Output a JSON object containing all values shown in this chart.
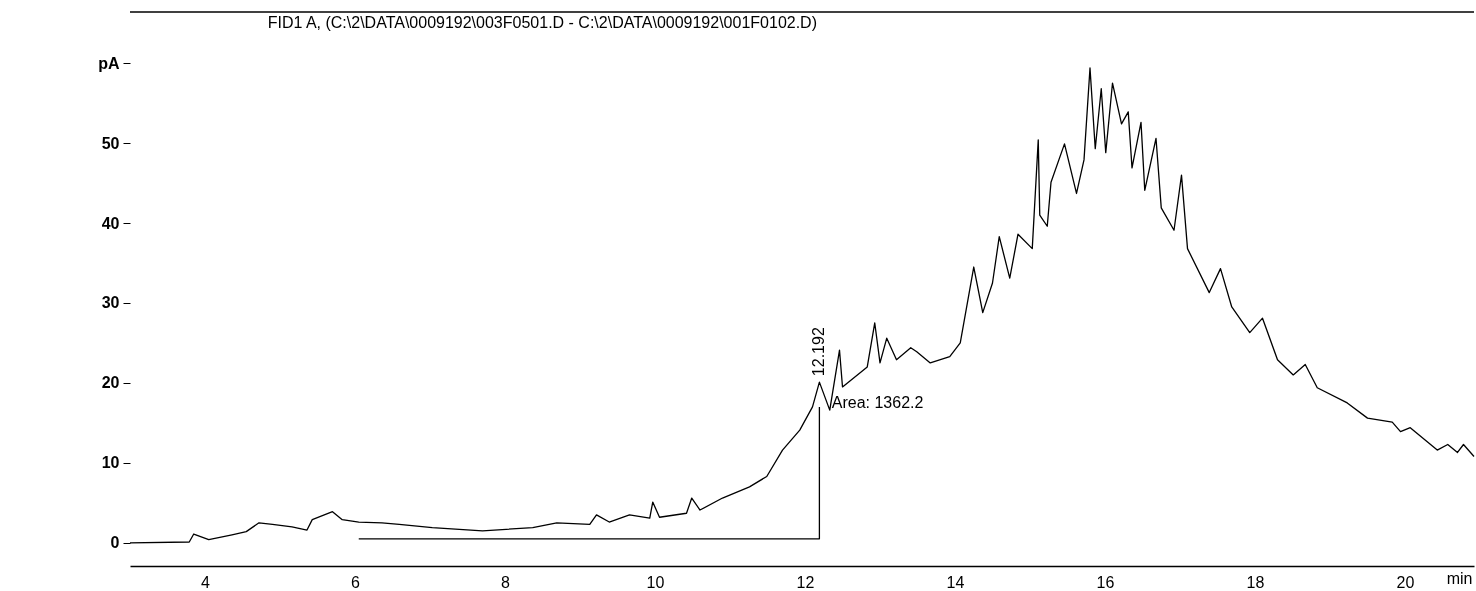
{
  "chart_data": {
    "type": "line",
    "title": "FID1 A, (C:\\2\\DATA\\0009192\\003F0501.D - C:\\2\\DATA\\0009192\\001F0102.D)",
    "xlabel": "min",
    "xlim": [
      3,
      20.92
    ],
    "ylim": [
      -2.9,
      66.4
    ],
    "xticks": [
      4,
      6,
      8,
      10,
      12,
      14,
      16,
      18,
      20
    ],
    "yticks": [
      0,
      10,
      20,
      30,
      40,
      50,
      {
        "value": 60,
        "label": "pA"
      }
    ],
    "marker": "none",
    "line_style": "solid",
    "series": [
      {
        "color": "#000000",
        "x": [
          3.0,
          3.79,
          3.85,
          4.05,
          4.36,
          4.55,
          4.72,
          4.9,
          5.16,
          5.36,
          5.43,
          5.7,
          5.83,
          6.05,
          6.36,
          6.59,
          7.03,
          7.7,
          8.37,
          8.69,
          9.13,
          9.22,
          9.39,
          9.66,
          9.93,
          9.97,
          10.06,
          10.42,
          10.49,
          10.6,
          10.9,
          11.26,
          11.49,
          11.7,
          11.93,
          12.1,
          12.192,
          12.33,
          12.46,
          12.5,
          12.83,
          12.93,
          13.0,
          13.09,
          13.22,
          13.41,
          13.49,
          13.67,
          13.93,
          14.07,
          14.25,
          14.37,
          14.5,
          14.59,
          14.73,
          14.84,
          15.03,
          15.11,
          15.13,
          15.23,
          15.28,
          15.46,
          15.62,
          15.72,
          15.8,
          15.87,
          15.95,
          16.01,
          16.1,
          16.22,
          16.31,
          16.36,
          16.48,
          16.53,
          16.68,
          16.75,
          16.92,
          17.02,
          17.1,
          17.39,
          17.54,
          17.69,
          17.93,
          18.1,
          18.3,
          18.51,
          18.67,
          18.83,
          19.23,
          19.5,
          19.83,
          19.94,
          20.07,
          20.43,
          20.57,
          20.7,
          20.78,
          20.92
        ],
        "values": [
          0,
          0.1,
          1.1,
          0.4,
          1.0,
          1.4,
          2.5,
          2.3,
          2.0,
          1.6,
          2.9,
          3.9,
          2.9,
          2.6,
          2.5,
          2.3,
          1.9,
          1.5,
          1.9,
          2.5,
          2.3,
          3.5,
          2.6,
          3.5,
          3.1,
          5.1,
          3.2,
          3.7,
          5.6,
          4.1,
          5.6,
          7.0,
          8.3,
          11.6,
          14.1,
          17.0,
          20.1,
          16.6,
          24.1,
          19.5,
          22.0,
          27.5,
          22.5,
          25.6,
          22.9,
          24.4,
          23.9,
          22.5,
          23.3,
          25.0,
          34.5,
          28.8,
          32.5,
          38.3,
          33.1,
          38.6,
          36.8,
          50.4,
          41.0,
          39.6,
          45.1,
          49.9,
          43.7,
          47.9,
          59.4,
          49.3,
          56.8,
          48.8,
          57.5,
          52.4,
          53.9,
          46.9,
          52.6,
          44.1,
          50.6,
          41.9,
          39.1,
          46.0,
          36.8,
          31.3,
          34.3,
          29.5,
          26.3,
          28.1,
          22.9,
          21.0,
          22.3,
          19.4,
          17.5,
          15.6,
          15.1,
          13.9,
          14.4,
          11.6,
          12.3,
          11.3,
          12.3,
          10.8
        ]
      },
      {
        "color": "#000000",
        "x": [
          6.05,
          12.192,
          12.192
        ],
        "values": [
          0.5,
          0.5,
          17.0
        ]
      }
    ],
    "annotations": [
      {
        "text": "12.192",
        "x": 12.192,
        "y": 20.1
      },
      {
        "text": "Area: 1362.2",
        "x": 12.25,
        "y": 19.3
      }
    ]
  }
}
